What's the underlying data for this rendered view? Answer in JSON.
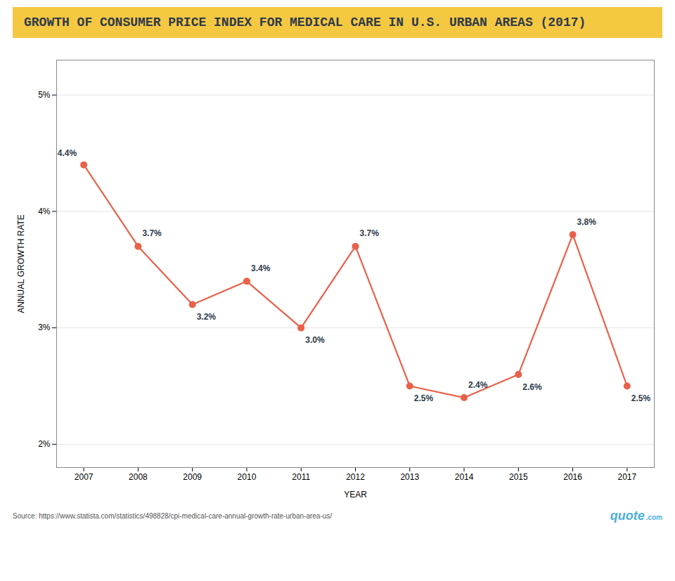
{
  "chart_data": {
    "type": "line",
    "title": "GROWTH OF CONSUMER PRICE INDEX FOR MEDICAL CARE IN U.S. URBAN AREAS (2017)",
    "x_label": "YEAR",
    "y_label": "ANNUAL GROWTH RATE",
    "x": [
      2007,
      2008,
      2009,
      2010,
      2011,
      2012,
      2013,
      2014,
      2015,
      2016,
      2017
    ],
    "values": [
      4.4,
      3.7,
      3.2,
      3.4,
      3.0,
      3.7,
      2.5,
      2.4,
      2.6,
      3.8,
      2.5
    ],
    "value_labels": [
      "4.4%",
      "3.7%",
      "3.2%",
      "3.4%",
      "3.0%",
      "3.7%",
      "2.5%",
      "2.4%",
      "2.6%",
      "3.8%",
      "2.5%"
    ],
    "data_labels": true,
    "color": "#E8614A",
    "marker": "circle",
    "xlim": [
      2006.5,
      2017.5
    ],
    "xticks": [
      2007,
      2008,
      2009,
      2010,
      2011,
      2012,
      2013,
      2014,
      2015,
      2016,
      2017
    ],
    "ylim": [
      1.8,
      5.3
    ],
    "yticks": [
      {
        "value": 2,
        "label": "2%"
      },
      {
        "value": 3,
        "label": "3%"
      },
      {
        "value": 4,
        "label": "4%"
      },
      {
        "value": 5,
        "label": "5%"
      }
    ],
    "grid": true,
    "annotations": [
      "Source: https://www.statista.com/statistics/498828/cpi-medical-care-annual-growth-rate-urban-area-us/",
      "quote",
      ".com"
    ]
  }
}
